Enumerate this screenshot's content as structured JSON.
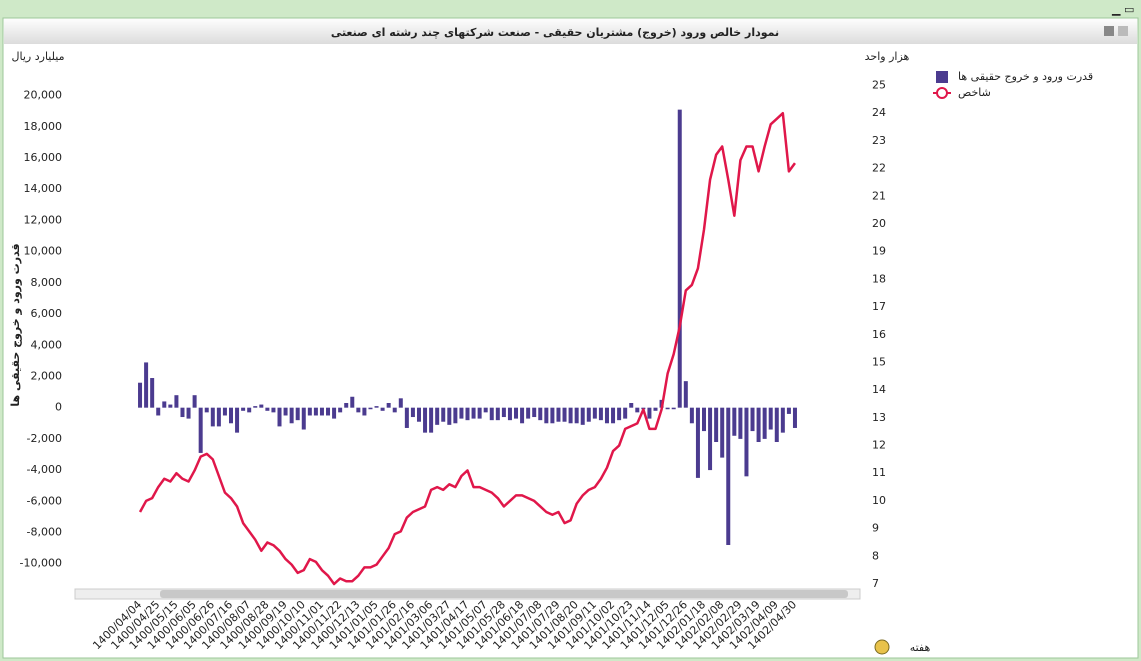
{
  "chart_data": {
    "type": "bar",
    "title": "نمودار خالص ورود (خروج) مشتریان حقیقی - صنعت شرکتهای چند رشته ای صنعتی",
    "y_unit": "میلیارد ریال",
    "y2_unit": "هزار واحد",
    "ylabel": "قدرت ورود و خروج حقیقی ها",
    "xlabel": "هفته",
    "ylim": [
      -11300,
      21000
    ],
    "yticks": [
      {
        "value": 20000,
        "label": "20,000"
      },
      {
        "value": 18000,
        "label": "18,000"
      },
      {
        "value": 16000,
        "label": "16,000"
      },
      {
        "value": 14000,
        "label": "14,000"
      },
      {
        "value": 12000,
        "label": "12,000"
      },
      {
        "value": 10000,
        "label": "10,000"
      },
      {
        "value": 8000,
        "label": "8,000"
      },
      {
        "value": 6000,
        "label": "6,000"
      },
      {
        "value": 4000,
        "label": "4,000"
      },
      {
        "value": 2000,
        "label": "2,000"
      },
      0,
      {
        "value": -2000,
        "label": "-2,000"
      },
      {
        "value": -4000,
        "label": "-4,000"
      },
      {
        "value": -6000,
        "label": "-6,000"
      },
      {
        "value": -8000,
        "label": "-8,000"
      },
      {
        "value": -10000,
        "label": "-10,000"
      }
    ],
    "y2lim": [
      7,
      25.2
    ],
    "y2ticks": [
      7,
      8,
      9,
      10,
      11,
      12,
      13,
      14,
      15,
      16,
      17,
      18,
      19,
      20,
      21,
      22,
      23,
      24,
      25
    ],
    "categories": [
      "1400/04/04",
      null,
      null,
      "1400/04/25",
      null,
      null,
      "1400/05/15",
      null,
      null,
      "1400/06/05",
      null,
      null,
      "1400/06/26",
      null,
      null,
      "1400/07/16",
      null,
      null,
      "1400/08/07",
      null,
      null,
      "1400/08/28",
      null,
      null,
      "1400/09/19",
      null,
      null,
      "1400/10/10",
      null,
      null,
      "1400/11/01",
      null,
      null,
      "1400/11/22",
      null,
      null,
      "1400/12/13",
      null,
      null,
      "1401/01/05",
      null,
      null,
      "1401/01/26",
      null,
      null,
      "1401/02/16",
      null,
      null,
      "1401/03/06",
      null,
      null,
      "1401/03/27",
      null,
      null,
      "1401/04/17",
      null,
      null,
      "1401/05/07",
      null,
      null,
      "1401/05/28",
      null,
      null,
      "1401/06/18",
      null,
      null,
      "1401/07/08",
      null,
      null,
      "1401/07/29",
      null,
      null,
      "1401/08/20",
      null,
      null,
      "1401/09/11",
      null,
      null,
      "1401/10/02",
      null,
      null,
      "1401/10/23",
      null,
      null,
      "1401/11/14",
      null,
      null,
      "1401/12/05",
      null,
      null,
      "1401/12/26",
      null,
      null,
      "1402/01/18",
      null,
      null,
      "1402/02/08",
      null,
      null,
      "1402/02/29",
      null,
      null,
      "1402/03/19",
      null,
      null,
      "1402/04/09",
      null,
      null,
      "1402/04/30"
    ],
    "series": [
      {
        "name": "قدرت ورود و خروج حقیقی ها",
        "type": "bar",
        "color": "#4b3b8f",
        "values": [
          1600,
          2900,
          1900,
          -500,
          400,
          200,
          800,
          -600,
          -700,
          800,
          -2900,
          -300,
          -1200,
          -1200,
          -500,
          -1000,
          -1600,
          -200,
          -300,
          100,
          200,
          -200,
          -300,
          -1200,
          -500,
          -1000,
          -800,
          -1400,
          -500,
          -500,
          -500,
          -500,
          -700,
          -300,
          300,
          700,
          -300,
          -500,
          -100,
          100,
          -200,
          300,
          -300,
          600,
          -1300,
          -600,
          -900,
          -1600,
          -1600,
          -1100,
          -900,
          -1100,
          -1000,
          -700,
          -800,
          -700,
          -700,
          -300,
          -800,
          -800,
          -600,
          -800,
          -700,
          -1000,
          -700,
          -600,
          -800,
          -1000,
          -1000,
          -900,
          -900,
          -1000,
          -1000,
          -1100,
          -900,
          -700,
          -800,
          -1000,
          -1000,
          -800,
          -700,
          300,
          -300,
          -100,
          -700,
          -200,
          500,
          -100,
          -100,
          19100,
          1700,
          -1000,
          -4500,
          -1500,
          -4000,
          -2200,
          -3200,
          -8800,
          -1800,
          -2000,
          -4400,
          -1500,
          -2200,
          -2000,
          -1400,
          -2200,
          -1600,
          -400,
          -1300
        ]
      },
      {
        "name": "شاخص",
        "type": "line",
        "axis": "y2",
        "color": "#e0174a",
        "values": [
          9.6,
          10.0,
          10.1,
          10.5,
          10.8,
          10.7,
          11.0,
          10.8,
          10.7,
          11.1,
          11.6,
          11.7,
          11.5,
          10.9,
          10.3,
          10.1,
          9.8,
          9.2,
          8.9,
          8.6,
          8.2,
          8.5,
          8.4,
          8.2,
          7.9,
          7.7,
          7.4,
          7.5,
          7.9,
          7.8,
          7.5,
          7.3,
          7.0,
          7.2,
          7.1,
          7.1,
          7.3,
          7.6,
          7.6,
          7.7,
          8.0,
          8.3,
          8.8,
          8.9,
          9.4,
          9.6,
          9.7,
          9.8,
          10.4,
          10.5,
          10.4,
          10.6,
          10.5,
          10.9,
          11.1,
          10.5,
          10.5,
          10.4,
          10.3,
          10.1,
          9.8,
          10.0,
          10.2,
          10.2,
          10.1,
          10.0,
          9.8,
          9.6,
          9.5,
          9.6,
          9.2,
          9.3,
          9.9,
          10.2,
          10.4,
          10.5,
          10.8,
          11.2,
          11.8,
          12.0,
          12.6,
          12.7,
          12.8,
          13.3,
          12.6,
          12.6,
          13.3,
          14.6,
          15.3,
          16.3,
          17.6,
          17.8,
          18.4,
          19.8,
          21.6,
          22.5,
          22.8,
          21.6,
          20.3,
          22.3,
          22.8,
          22.8,
          21.9,
          22.8,
          23.6,
          23.8,
          24.0,
          21.9,
          22.2
        ]
      }
    ]
  }
}
